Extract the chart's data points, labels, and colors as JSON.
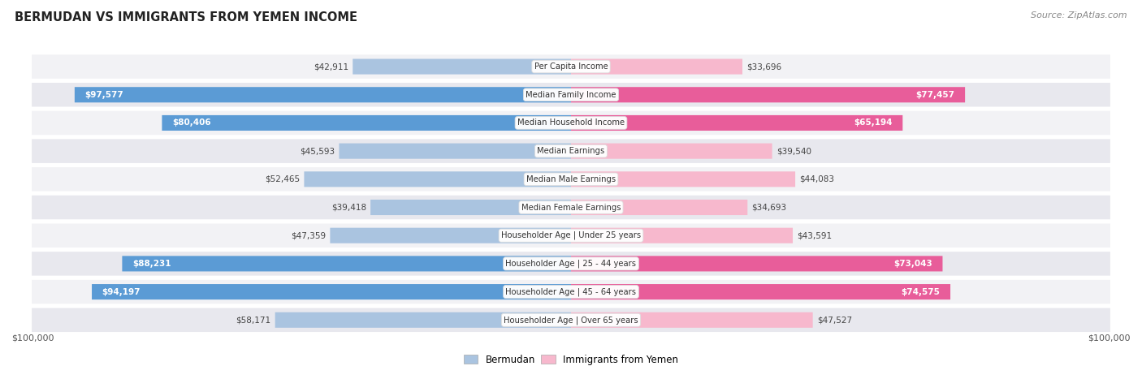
{
  "title": "BERMUDAN VS IMMIGRANTS FROM YEMEN INCOME",
  "source": "Source: ZipAtlas.com",
  "categories": [
    "Per Capita Income",
    "Median Family Income",
    "Median Household Income",
    "Median Earnings",
    "Median Male Earnings",
    "Median Female Earnings",
    "Householder Age | Under 25 years",
    "Householder Age | 25 - 44 years",
    "Householder Age | 45 - 64 years",
    "Householder Age | Over 65 years"
  ],
  "bermudan_values": [
    42911,
    97577,
    80406,
    45593,
    52465,
    39418,
    47359,
    88231,
    94197,
    58171
  ],
  "yemen_values": [
    33696,
    77457,
    65194,
    39540,
    44083,
    34693,
    43591,
    73043,
    74575,
    47527
  ],
  "bermudan_labels": [
    "$42,911",
    "$97,577",
    "$80,406",
    "$45,593",
    "$52,465",
    "$39,418",
    "$47,359",
    "$88,231",
    "$94,197",
    "$58,171"
  ],
  "yemen_labels": [
    "$33,696",
    "$77,457",
    "$65,194",
    "$39,540",
    "$44,083",
    "$34,693",
    "$43,591",
    "$73,043",
    "$74,575",
    "$47,527"
  ],
  "max_value": 100000,
  "bermudan_light": "#aac4e0",
  "bermudan_dark": "#5b9bd5",
  "yemen_light": "#f7b8cd",
  "yemen_dark": "#e85d9a",
  "threshold": 60000,
  "xlabel_left": "$100,000",
  "xlabel_right": "$100,000",
  "legend_bermudan": "Bermudan",
  "legend_yemen": "Immigrants from Yemen",
  "background_color": "#ffffff",
  "row_bg_light": "#f2f2f5",
  "row_bg_dark": "#e8e8ee"
}
